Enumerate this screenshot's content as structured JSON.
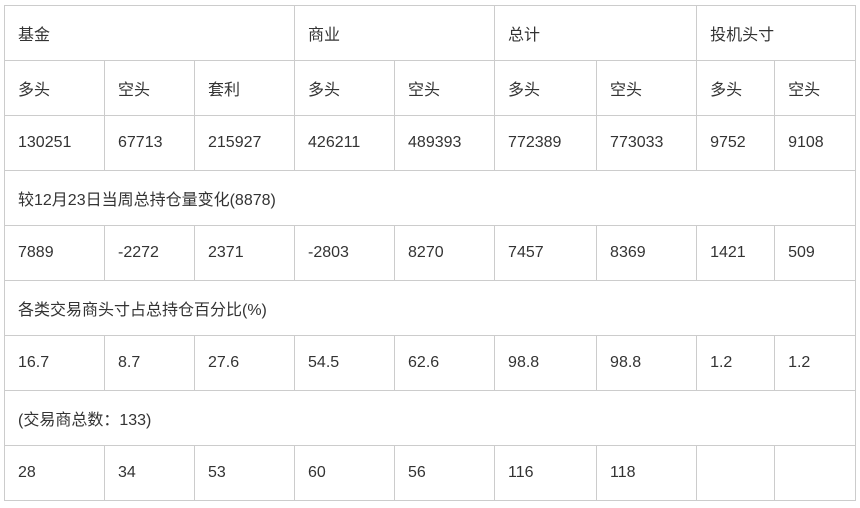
{
  "groups": [
    {
      "label": "基金",
      "span": 3
    },
    {
      "label": "商业",
      "span": 2
    },
    {
      "label": "总计",
      "span": 2
    },
    {
      "label": "投机头寸",
      "span": 2
    }
  ],
  "subheaders": [
    "多头",
    "空头",
    "套利",
    "多头",
    "空头",
    "多头",
    "空头",
    "多头",
    "空头"
  ],
  "positions": [
    "130251",
    "67713",
    "215927",
    "426211",
    "489393",
    "772389",
    "773033",
    "9752",
    "9108"
  ],
  "change_title": "较12月23日当周总持仓量变化(8878)",
  "changes": [
    "7889",
    "-2272",
    "2371",
    "-2803",
    "8270",
    "7457",
    "8369",
    "1421",
    "509"
  ],
  "percent_title": "各类交易商头寸占总持仓百分比(%)",
  "percents": [
    "16.7",
    "8.7",
    "27.6",
    "54.5",
    "62.6",
    "98.8",
    "98.8",
    "1.2",
    "1.2"
  ],
  "traders_title": "(交易商总数：133)",
  "traders": [
    "28",
    "34",
    "53",
    "60",
    "56",
    "116",
    "118",
    "",
    ""
  ]
}
